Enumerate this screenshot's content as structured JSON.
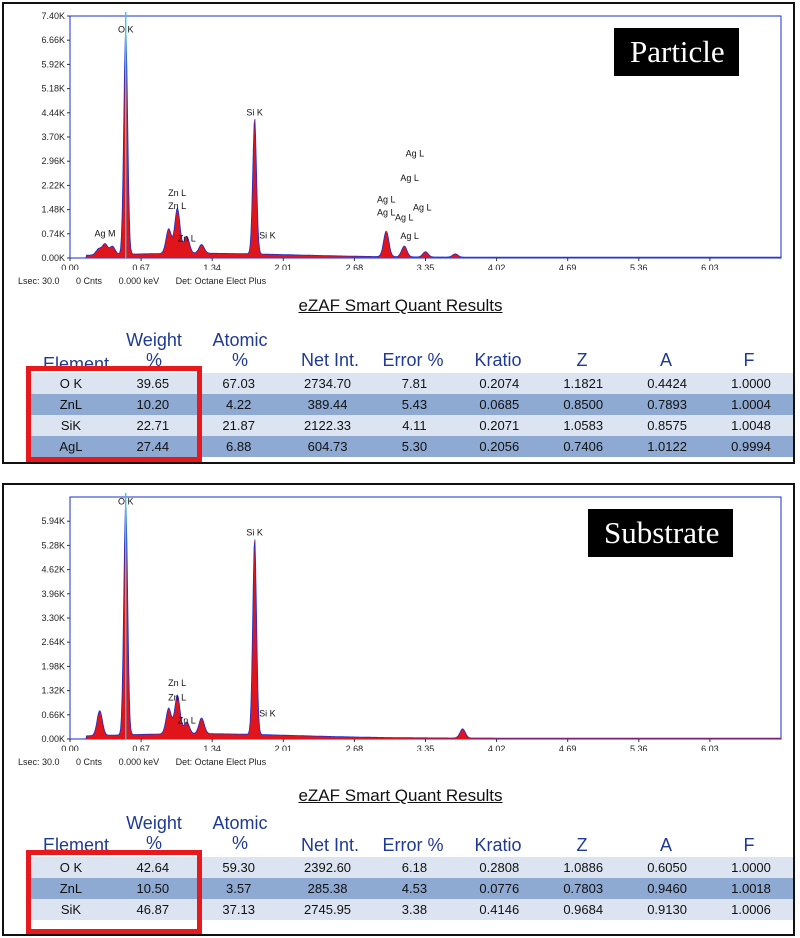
{
  "chart_data": [
    {
      "type": "area",
      "panel_label": "Particle",
      "x_ticks": [
        "0.00",
        "0.67",
        "1.34",
        "2.01",
        "2.68",
        "3.35",
        "4.02",
        "4.69",
        "5.36",
        "6.03"
      ],
      "y_ticks": [
        "0.00K",
        "0.74K",
        "1.48K",
        "2.22K",
        "2.96K",
        "3.70K",
        "4.44K",
        "5.18K",
        "5.92K",
        "6.66K",
        "7.40K"
      ],
      "xlim": [
        0.0,
        6.7
      ],
      "ylim": [
        0,
        7400
      ],
      "peaks": [
        {
          "x": 0.27,
          "y": 180
        },
        {
          "x": 0.33,
          "y": 330
        },
        {
          "x": 0.4,
          "y": 250
        },
        {
          "x": 0.525,
          "y": 6800
        },
        {
          "x": 0.93,
          "y": 750
        },
        {
          "x": 1.012,
          "y": 1380
        },
        {
          "x": 1.1,
          "y": 520
        },
        {
          "x": 1.24,
          "y": 270
        },
        {
          "x": 1.74,
          "y": 4150
        },
        {
          "x": 2.98,
          "y": 780
        },
        {
          "x": 3.15,
          "y": 330
        },
        {
          "x": 3.35,
          "y": 160
        },
        {
          "x": 3.63,
          "y": 100
        }
      ],
      "peak_labels": [
        {
          "text": "O  K",
          "x": 0.525,
          "y": 6900
        },
        {
          "text": "Ag M",
          "x": 0.33,
          "y": 650
        },
        {
          "text": "Zn L",
          "x": 1.01,
          "y": 1900
        },
        {
          "text": "Zn L",
          "x": 1.01,
          "y": 1500
        },
        {
          "text": "Zn L",
          "x": 1.1,
          "y": 500
        },
        {
          "text": "Si K",
          "x": 1.74,
          "y": 4350
        },
        {
          "text": "Si K",
          "x": 1.86,
          "y": 600
        },
        {
          "text": "Ag L",
          "x": 3.25,
          "y": 3100
        },
        {
          "text": "Ag L",
          "x": 3.2,
          "y": 2350
        },
        {
          "text": "Ag L",
          "x": 2.98,
          "y": 1700
        },
        {
          "text": "Ag L",
          "x": 2.98,
          "y": 1300
        },
        {
          "text": "Ag L",
          "x": 3.32,
          "y": 1450
        },
        {
          "text": "Ag L",
          "x": 3.15,
          "y": 1150
        },
        {
          "text": "Ag L",
          "x": 3.2,
          "y": 580
        }
      ],
      "footer": {
        "lsec": "Lsec: 30.0",
        "cnts": "0 Cnts",
        "kev": "0.000 keV",
        "det": "Det: Octane Elect Plus"
      },
      "results_title": "eZAF Smart Quant Results",
      "headers": {
        "element": "Element",
        "weight_1": "Weight",
        "weight_2": "%",
        "atomic_1": "Atomic",
        "atomic_2": "%",
        "net": "Net Int.",
        "error": "Error %",
        "kratio": "Kratio",
        "z": "Z",
        "a": "A",
        "f": "F"
      },
      "rows": [
        [
          "O K",
          "39.65",
          "67.03",
          "2734.70",
          "7.81",
          "0.2074",
          "1.1821",
          "0.4424",
          "1.0000"
        ],
        [
          "ZnL",
          "10.20",
          "4.22",
          "389.44",
          "5.43",
          "0.0685",
          "0.8500",
          "0.7893",
          "1.0004"
        ],
        [
          "SiK",
          "22.71",
          "21.87",
          "2122.33",
          "4.11",
          "0.2071",
          "1.0583",
          "0.8575",
          "1.0048"
        ],
        [
          "AgL",
          "27.44",
          "6.88",
          "604.73",
          "5.30",
          "0.2056",
          "0.7406",
          "1.0122",
          "0.9994"
        ]
      ]
    },
    {
      "type": "area",
      "panel_label": "Substrate",
      "x_ticks": [
        "0.00",
        "0.67",
        "1.34",
        "2.01",
        "2.68",
        "3.35",
        "4.02",
        "4.69",
        "5.36",
        "6.03"
      ],
      "y_ticks": [
        "0.00K",
        "0.66K",
        "1.32K",
        "1.98K",
        "2.64K",
        "3.30K",
        "3.96K",
        "4.62K",
        "5.28K",
        "5.94K"
      ],
      "xlim": [
        0.0,
        6.7
      ],
      "ylim": [
        0,
        6600
      ],
      "peaks": [
        {
          "x": 0.28,
          "y": 680
        },
        {
          "x": 0.525,
          "y": 6300
        },
        {
          "x": 0.93,
          "y": 700
        },
        {
          "x": 1.012,
          "y": 1050
        },
        {
          "x": 1.1,
          "y": 320
        },
        {
          "x": 1.24,
          "y": 430
        },
        {
          "x": 1.74,
          "y": 5350
        },
        {
          "x": 3.7,
          "y": 250
        }
      ],
      "peak_labels": [
        {
          "text": "O  K",
          "x": 0.525,
          "y": 6400
        },
        {
          "text": "Si K",
          "x": 1.74,
          "y": 5550
        },
        {
          "text": "Zn L",
          "x": 1.01,
          "y": 1450
        },
        {
          "text": "Zn L",
          "x": 1.01,
          "y": 1050
        },
        {
          "text": "Zn L",
          "x": 1.1,
          "y": 420
        },
        {
          "text": "Si K",
          "x": 1.86,
          "y": 620
        }
      ],
      "footer": {
        "lsec": "Lsec: 30.0",
        "cnts": "0 Cnts",
        "kev": "0.000 keV",
        "det": "Det: Octane Elect Plus"
      },
      "results_title": "eZAF Smart Quant Results",
      "headers": {
        "element": "Element",
        "weight_1": "Weight",
        "weight_2": "%",
        "atomic_1": "Atomic",
        "atomic_2": "%",
        "net": "Net Int.",
        "error": "Error %",
        "kratio": "Kratio",
        "z": "Z",
        "a": "A",
        "f": "F"
      },
      "rows": [
        [
          "O K",
          "42.64",
          "59.30",
          "2392.60",
          "6.18",
          "0.2808",
          "1.0886",
          "0.6050",
          "1.0000"
        ],
        [
          "ZnL",
          "10.50",
          "3.57",
          "285.38",
          "4.53",
          "0.0776",
          "0.7803",
          "0.9460",
          "1.0018"
        ],
        [
          "SiK",
          "46.87",
          "37.13",
          "2745.95",
          "3.38",
          "0.4146",
          "0.9684",
          "0.9130",
          "1.0006"
        ]
      ]
    }
  ],
  "colors": {
    "spectrum_fill": "#e0141b",
    "outline": "#1a2fd1",
    "cursor": "#35c8e6",
    "row_light": "#dbe4f0",
    "row_dark": "#8ea9d2",
    "highlight": "#e8191c",
    "header_text": "#1f3a93"
  }
}
